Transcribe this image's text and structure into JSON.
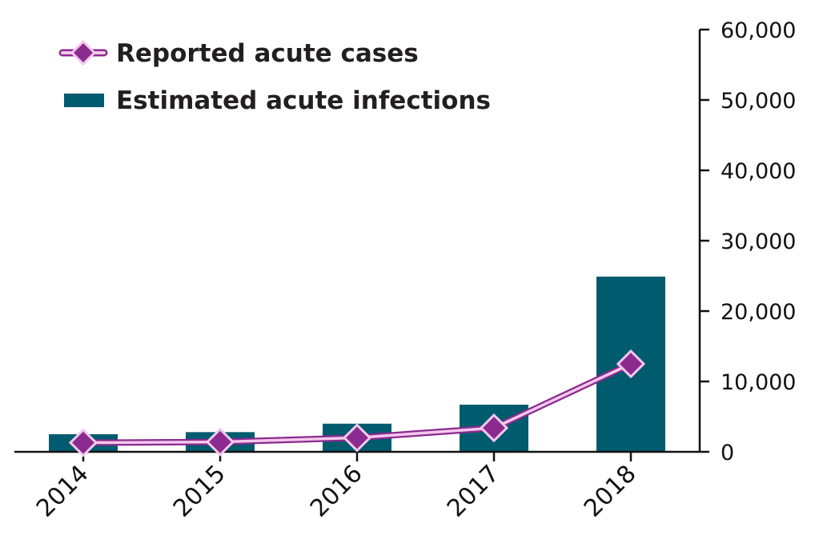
{
  "chart_data": {
    "type": "bar",
    "categories": [
      "2014",
      "2015",
      "2016",
      "2017",
      "2018"
    ],
    "series": [
      {
        "name": "Estimated acute infections",
        "type": "bar",
        "color": "#005b6e",
        "values": [
          2500,
          2800,
          4000,
          6700,
          24900
        ]
      },
      {
        "name": "Reported acute cases",
        "type": "line",
        "color": "#8b2a8f",
        "line_color": "#f3c8ec",
        "marker": "diamond",
        "values": [
          1300,
          1400,
          2000,
          3400,
          12500
        ]
      }
    ],
    "ylim": [
      0,
      60000
    ],
    "y_ticks": [
      "0",
      "10,000",
      "20,000",
      "30,000",
      "40,000",
      "50,000",
      "60,000"
    ],
    "y_axis_side": "right",
    "grid": false,
    "legend_position": "top-left"
  }
}
